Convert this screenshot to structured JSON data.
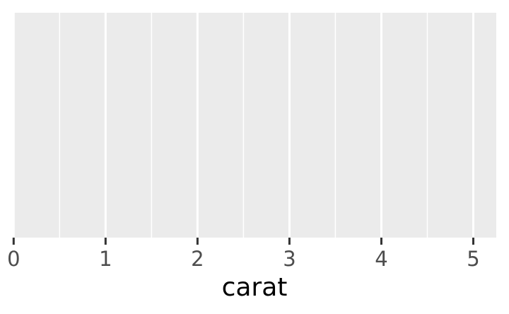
{
  "chart_data": {
    "type": "scatter",
    "title": "",
    "xlabel": "carat",
    "ylabel": "",
    "xlim": [
      -0.01,
      5.25
    ],
    "x_major_ticks": [
      0,
      1,
      2,
      3,
      4,
      5
    ],
    "x_tick_labels": [
      "0",
      "1",
      "2",
      "3",
      "4",
      "5"
    ],
    "x_minor_gridlines": [
      0.5,
      1.5,
      2.5,
      3.5,
      4.5
    ],
    "y_ticks": [],
    "grid": true,
    "legend": "none",
    "series": [],
    "colors": {
      "panel_background": "#ebebeb",
      "gridline": "#ffffff",
      "tick_mark": "#333333",
      "tick_label": "#4d4d4d",
      "axis_title": "#000000"
    }
  }
}
